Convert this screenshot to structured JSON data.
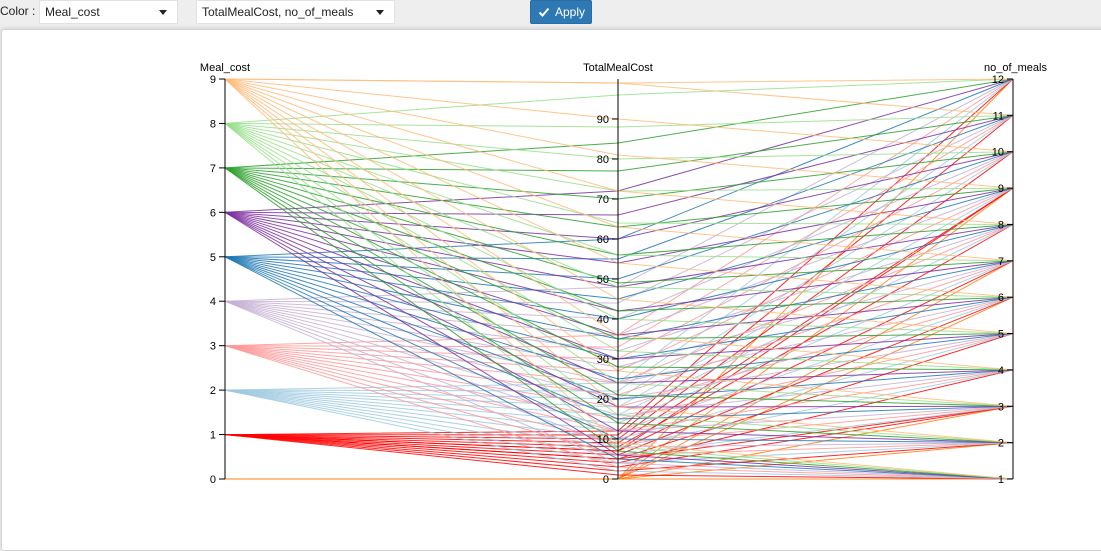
{
  "toolbar": {
    "color_label": "Color :",
    "color_select": "Meal_cost",
    "columns_select": "TotalMealCost, no_of_meals",
    "apply_label": "Apply"
  },
  "chart_data": {
    "type": "parallel_coordinates",
    "axes": [
      {
        "name": "Meal_cost",
        "range": [
          0,
          9
        ],
        "ticks": [
          "0",
          "1",
          "2",
          "3",
          "4",
          "5",
          "6",
          "7",
          "8",
          "9"
        ]
      },
      {
        "name": "TotalMealCost",
        "range": [
          0,
          100
        ],
        "ticks": [
          "0",
          "10",
          "20",
          "30",
          "40",
          "50",
          "60",
          "70",
          "80",
          "90"
        ]
      },
      {
        "name": "no_of_meals",
        "range": [
          1,
          12
        ],
        "ticks": [
          "1",
          "2",
          "3",
          "4",
          "5",
          "6",
          "7",
          "8",
          "9",
          "10",
          "11",
          "12"
        ]
      }
    ],
    "color_by": "Meal_cost",
    "colors": {
      "0": "#ff7f0e",
      "1": "#ff0000",
      "2": "#9ecae1",
      "3": "#ff9896",
      "4": "#c5b0d5",
      "5": "#1f77b4",
      "6": "#7b2fa0",
      "7": "#2ca02c",
      "8": "#98df8a",
      "9": "#ffbb78"
    },
    "records": [
      [
        0,
        0,
        1
      ],
      [
        0,
        0,
        3
      ],
      [
        0,
        0,
        6
      ],
      [
        0,
        0,
        9
      ],
      [
        0,
        0,
        12
      ],
      [
        0,
        0,
        2
      ],
      [
        0,
        0,
        7
      ],
      [
        1,
        1,
        1
      ],
      [
        1,
        2,
        2
      ],
      [
        1,
        3,
        3
      ],
      [
        1,
        4,
        4
      ],
      [
        1,
        5,
        5
      ],
      [
        1,
        6,
        6
      ],
      [
        1,
        7,
        7
      ],
      [
        1,
        8,
        8
      ],
      [
        1,
        9,
        9
      ],
      [
        1,
        10,
        10
      ],
      [
        1,
        11,
        11
      ],
      [
        1,
        12,
        12
      ],
      [
        1,
        5,
        3
      ],
      [
        1,
        7,
        9
      ],
      [
        2,
        2,
        1
      ],
      [
        2,
        4,
        2
      ],
      [
        2,
        6,
        3
      ],
      [
        2,
        8,
        4
      ],
      [
        2,
        10,
        5
      ],
      [
        2,
        12,
        6
      ],
      [
        2,
        14,
        7
      ],
      [
        2,
        16,
        8
      ],
      [
        2,
        18,
        9
      ],
      [
        2,
        20,
        10
      ],
      [
        2,
        22,
        11
      ],
      [
        2,
        24,
        12
      ],
      [
        3,
        3,
        1
      ],
      [
        3,
        6,
        2
      ],
      [
        3,
        9,
        3
      ],
      [
        3,
        12,
        4
      ],
      [
        3,
        15,
        5
      ],
      [
        3,
        18,
        6
      ],
      [
        3,
        21,
        7
      ],
      [
        3,
        24,
        8
      ],
      [
        3,
        27,
        9
      ],
      [
        3,
        30,
        10
      ],
      [
        3,
        33,
        11
      ],
      [
        3,
        36,
        12
      ],
      [
        4,
        4,
        1
      ],
      [
        4,
        8,
        2
      ],
      [
        4,
        12,
        3
      ],
      [
        4,
        16,
        4
      ],
      [
        4,
        20,
        5
      ],
      [
        4,
        24,
        6
      ],
      [
        4,
        28,
        7
      ],
      [
        4,
        32,
        8
      ],
      [
        4,
        36,
        9
      ],
      [
        4,
        40,
        10
      ],
      [
        4,
        44,
        11
      ],
      [
        4,
        48,
        12
      ],
      [
        5,
        5,
        1
      ],
      [
        5,
        10,
        2
      ],
      [
        5,
        15,
        3
      ],
      [
        5,
        20,
        4
      ],
      [
        5,
        25,
        5
      ],
      [
        5,
        30,
        6
      ],
      [
        5,
        35,
        7
      ],
      [
        5,
        40,
        8
      ],
      [
        5,
        45,
        9
      ],
      [
        5,
        50,
        10
      ],
      [
        5,
        55,
        11
      ],
      [
        5,
        60,
        12
      ],
      [
        6,
        6,
        1
      ],
      [
        6,
        12,
        2
      ],
      [
        6,
        18,
        3
      ],
      [
        6,
        24,
        4
      ],
      [
        6,
        30,
        5
      ],
      [
        6,
        36,
        6
      ],
      [
        6,
        42,
        7
      ],
      [
        6,
        48,
        8
      ],
      [
        6,
        54,
        9
      ],
      [
        6,
        60,
        10
      ],
      [
        6,
        66,
        11
      ],
      [
        6,
        72,
        12
      ],
      [
        7,
        7,
        1
      ],
      [
        7,
        14,
        2
      ],
      [
        7,
        21,
        3
      ],
      [
        7,
        28,
        4
      ],
      [
        7,
        35,
        5
      ],
      [
        7,
        42,
        6
      ],
      [
        7,
        49,
        7
      ],
      [
        7,
        56,
        8
      ],
      [
        7,
        63,
        9
      ],
      [
        7,
        70,
        10
      ],
      [
        7,
        77,
        11
      ],
      [
        7,
        84,
        12
      ],
      [
        8,
        8,
        1
      ],
      [
        8,
        16,
        2
      ],
      [
        8,
        24,
        3
      ],
      [
        8,
        32,
        4
      ],
      [
        8,
        40,
        5
      ],
      [
        8,
        48,
        6
      ],
      [
        8,
        56,
        7
      ],
      [
        8,
        64,
        8
      ],
      [
        8,
        72,
        9
      ],
      [
        8,
        80,
        10
      ],
      [
        8,
        88,
        11
      ],
      [
        8,
        96,
        12
      ],
      [
        9,
        9,
        1
      ],
      [
        9,
        18,
        2
      ],
      [
        9,
        27,
        3
      ],
      [
        9,
        36,
        4
      ],
      [
        9,
        45,
        5
      ],
      [
        9,
        54,
        6
      ],
      [
        9,
        63,
        7
      ],
      [
        9,
        72,
        8
      ],
      [
        9,
        81,
        9
      ],
      [
        9,
        90,
        10
      ],
      [
        9,
        99,
        11
      ],
      [
        9,
        99,
        12
      ]
    ]
  }
}
